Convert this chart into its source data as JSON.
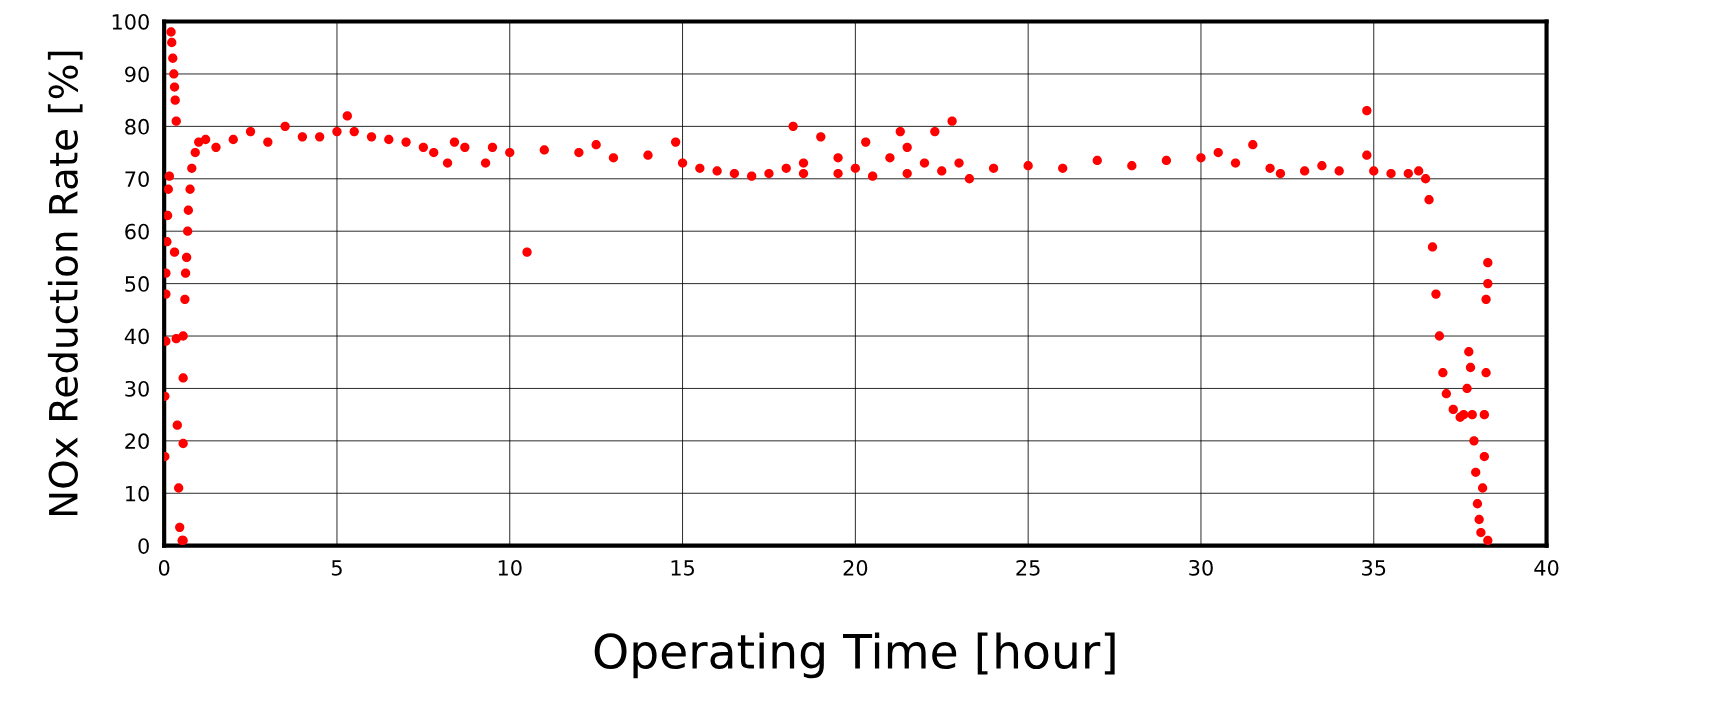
{
  "chart_data": {
    "type": "scatter",
    "xlabel": "Operating Time [hour]",
    "ylabel": "NOx Reduction Rate [%]",
    "marker": "circle",
    "grid": true,
    "xlim": [
      0,
      40
    ],
    "xticks": [
      0,
      5,
      10,
      15,
      20,
      25,
      30,
      35,
      40
    ],
    "ylim": [
      0,
      100
    ],
    "yticks": [
      0,
      10,
      20,
      30,
      40,
      50,
      60,
      70,
      80,
      90,
      100
    ],
    "series": [
      {
        "color": "#ff0000",
        "x": [
          0.02,
          0.02,
          0.05,
          0.05,
          0.05,
          0.08,
          0.1,
          0.12,
          0.15,
          0.2,
          0.22,
          0.25,
          0.28,
          0.3,
          0.32,
          0.35,
          0.3,
          0.35,
          0.38,
          0.42,
          0.45,
          0.52,
          0.55,
          0.55,
          0.55,
          0.55,
          0.6,
          0.62,
          0.65,
          0.68,
          0.7,
          0.75,
          0.8,
          0.9,
          1.0,
          1.2,
          1.5,
          2,
          2.5,
          3,
          3.5,
          4,
          4.5,
          5,
          5.3,
          5.5,
          6,
          6.5,
          7,
          7.5,
          7.8,
          8.2,
          8.4,
          8.7,
          9.3,
          9.5,
          10,
          10.5,
          11,
          12,
          12.5,
          13,
          14,
          14.8,
          15,
          15.5,
          16,
          16.5,
          17,
          17.5,
          18,
          18.2,
          18.5,
          18.5,
          19,
          19.5,
          19.5,
          20,
          20.3,
          20.5,
          21,
          21.3,
          21.5,
          21.5,
          22,
          22.3,
          22.5,
          22.8,
          23,
          23.3,
          24,
          25,
          26,
          27,
          28,
          29,
          30,
          30.5,
          31,
          31.5,
          32,
          32.3,
          33,
          33.5,
          34,
          34.8,
          34.8,
          35,
          35.5,
          36,
          36.3,
          36.5,
          36.6,
          36.7,
          36.8,
          36.9,
          37,
          37.1,
          37.3,
          37.5,
          37.6,
          37.7,
          37.75,
          37.8,
          37.85,
          37.9,
          37.95,
          38,
          38.05,
          38.1,
          38.15,
          38.2,
          38.2,
          38.25,
          38.25,
          38.3,
          38.3,
          38.3
        ],
        "values": [
          17,
          28.5,
          39,
          48,
          52,
          58,
          63,
          68,
          70.5,
          98,
          96,
          93,
          90,
          87.5,
          85,
          81,
          56,
          39.5,
          23,
          11,
          3.5,
          1,
          1,
          19.5,
          32,
          40,
          47,
          52,
          55,
          60,
          64,
          68,
          72,
          75,
          77,
          77.5,
          76,
          77.5,
          79,
          77,
          80,
          78,
          78,
          79,
          82,
          79,
          78,
          77.5,
          77,
          76,
          75,
          73,
          77,
          76,
          73,
          76,
          75,
          56,
          75.5,
          75,
          76.5,
          74,
          74.5,
          77,
          73,
          72,
          71.5,
          71,
          70.5,
          71,
          72,
          80,
          73,
          71,
          78,
          74,
          71,
          72,
          77,
          70.5,
          74,
          79,
          76,
          71,
          73,
          79,
          71.5,
          81,
          73,
          70,
          72,
          72.5,
          72,
          73.5,
          72.5,
          73.5,
          74,
          75,
          73,
          76.5,
          72,
          71,
          71.5,
          72.5,
          71.5,
          83,
          74.5,
          71.5,
          71,
          71,
          71.5,
          70,
          66,
          57,
          48,
          40,
          33,
          29,
          26,
          24.5,
          25,
          30,
          37,
          34,
          25,
          20,
          14,
          8,
          5,
          2.5,
          11,
          17,
          25,
          33,
          47,
          50,
          54,
          1
        ]
      }
    ]
  }
}
